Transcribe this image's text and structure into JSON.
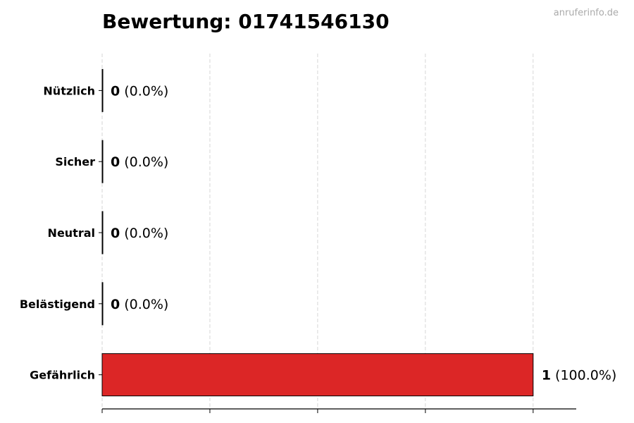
{
  "chart_data": {
    "type": "bar",
    "orientation": "horizontal",
    "title": "Bewertung: 01741546130",
    "watermark": "anruferinfo.de",
    "categories": [
      "Nützlich",
      "Sicher",
      "Neutral",
      "Belästigend",
      "Gefährlich"
    ],
    "values": [
      0,
      0,
      0,
      0,
      1
    ],
    "value_labels": [
      "0",
      "0",
      "0",
      "0",
      "1"
    ],
    "percent_labels": [
      "(0.0%)",
      "(0.0%)",
      "(0.0%)",
      "(0.0%)",
      "(100.0%)"
    ],
    "colors": {
      "Gefährlich": "#dc2626",
      "bar_edge": "#000000",
      "grid": "#cccccc"
    },
    "xlim": [
      0,
      1.1
    ],
    "xticks": [
      0,
      0.25,
      0.5,
      0.75,
      1
    ],
    "grid": "vertical dashed",
    "xlabel": "",
    "ylabel": ""
  }
}
